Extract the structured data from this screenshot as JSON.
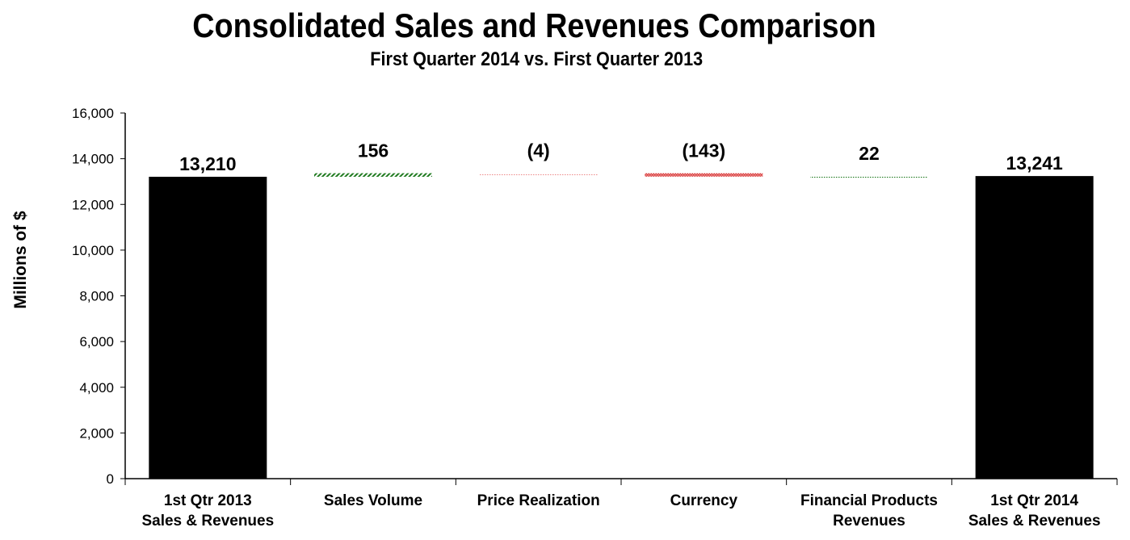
{
  "chart_data": {
    "type": "waterfall",
    "title": "Consolidated Sales and Revenues Comparison",
    "subtitle": "First Quarter 2014 vs. First Quarter 2013",
    "ylabel": "Millions of $",
    "xlabel": "",
    "ylim": [
      0,
      16000
    ],
    "yticks": [
      0,
      2000,
      4000,
      6000,
      8000,
      10000,
      12000,
      14000,
      16000
    ],
    "ytick_labels": [
      "0",
      "2,000",
      "4,000",
      "6,000",
      "8,000",
      "10,000",
      "12,000",
      "14,000",
      "16,000"
    ],
    "grid": false,
    "categories": [
      [
        "1st Qtr 2013",
        "Sales & Revenues"
      ],
      [
        "Sales Volume"
      ],
      [
        "Price Realization"
      ],
      [
        "Currency"
      ],
      [
        "Financial Products",
        "Revenues"
      ],
      [
        "1st Qtr 2014",
        "Sales & Revenues"
      ]
    ],
    "values": [
      13210,
      156,
      -4,
      -143,
      22,
      13241
    ],
    "kinds": [
      "total",
      "delta",
      "delta",
      "delta",
      "delta",
      "total"
    ],
    "data_labels": [
      "13,210",
      "156",
      "(4)",
      "(143)",
      "22",
      "13,241"
    ],
    "colors": {
      "total": "#000000",
      "increase": "#1f7a1f",
      "decrease": "#e03030"
    }
  }
}
